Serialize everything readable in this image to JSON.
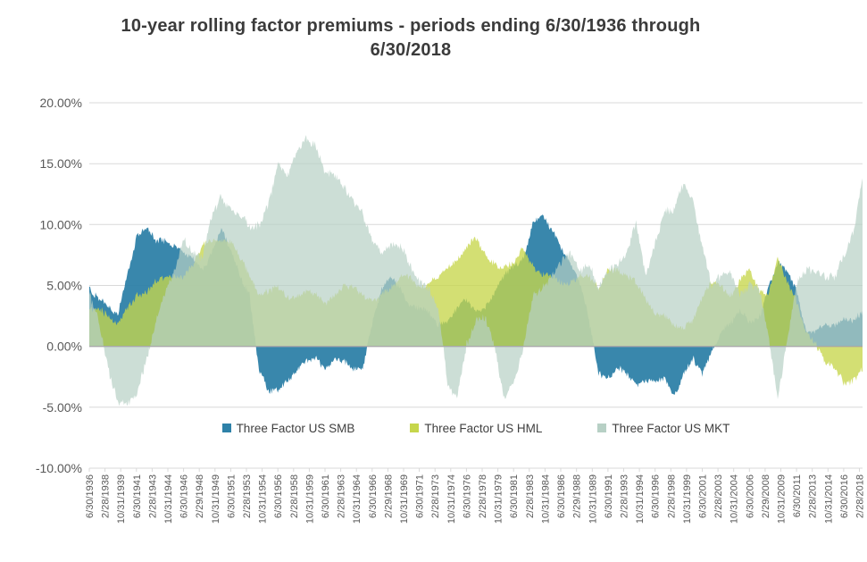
{
  "page": {
    "background": "#FFFFFF"
  },
  "colors": {
    "grid_line": "#D9D9D9",
    "zero_line": "#A8A8A8",
    "axis_text": "#595959",
    "title_text": "#3B3B3B",
    "legend_text": "#404040"
  },
  "chart_data": {
    "type": "area",
    "title": "10-year rolling factor premiums - periods ending 6/30/1936 through 6/30/2018",
    "grid": true,
    "legend_position": "bottom-inside",
    "y_axis": {
      "min": -10,
      "max": 20,
      "step": 5,
      "unit": "percent",
      "tick_labels": [
        "20.00%",
        "15.00%",
        "10.00%",
        "5.00%",
        "0.00%",
        "-5.00%",
        "-10.00%"
      ]
    },
    "x_axis": {
      "start_label": "6/30/1936",
      "end_label": "6/30/2018",
      "tick_interval_months": 20,
      "total_months": 984,
      "tick_labels": [
        "6/30/1936",
        "2/28/1938",
        "10/31/1939",
        "6/30/1941",
        "2/28/1943",
        "10/31/1944",
        "6/30/1946",
        "2/29/1948",
        "10/31/1949",
        "6/30/1951",
        "2/28/1953",
        "10/31/1954",
        "6/30/1956",
        "2/28/1958",
        "10/31/1959",
        "6/30/1961",
        "2/28/1963",
        "10/31/1964",
        "6/30/1966",
        "2/29/1968",
        "10/31/1969",
        "6/30/1971",
        "2/28/1973",
        "10/31/1974",
        "6/30/1976",
        "2/28/1978",
        "10/31/1979",
        "6/30/1981",
        "2/28/1983",
        "10/31/1984",
        "6/30/1986",
        "2/29/1988",
        "10/31/1989",
        "6/30/1991",
        "2/28/1993",
        "10/31/1994",
        "6/30/1996",
        "2/28/1998",
        "10/31/1999",
        "6/30/2001",
        "2/28/2003",
        "10/31/2004",
        "6/30/2006",
        "2/29/2008",
        "10/31/2009",
        "6/30/2011",
        "2/28/2013",
        "10/31/2014",
        "6/30/2016",
        "2/28/2018"
      ]
    },
    "anchor_years": [
      1936,
      1937,
      1938,
      1939,
      1940,
      1941,
      1942,
      1943,
      1944,
      1945,
      1946,
      1947,
      1948,
      1949,
      1950,
      1951,
      1952,
      1953,
      1954,
      1955,
      1956,
      1957,
      1958,
      1959,
      1960,
      1961,
      1962,
      1963,
      1964,
      1965,
      1966,
      1967,
      1968,
      1969,
      1970,
      1971,
      1972,
      1973,
      1974,
      1975,
      1976,
      1977,
      1978,
      1979,
      1980,
      1981,
      1982,
      1983,
      1984,
      1985,
      1986,
      1987,
      1988,
      1989,
      1990,
      1991,
      1992,
      1993,
      1994,
      1995,
      1996,
      1997,
      1998,
      1999,
      2000,
      2001,
      2002,
      2003,
      2004,
      2005,
      2006,
      2007,
      2008,
      2009,
      2010,
      2011,
      2012,
      2013,
      2014,
      2015,
      2016,
      2017,
      2018
    ],
    "series": [
      {
        "name": "Three Factor US SMB",
        "color": "#2E81A8",
        "values": [
          5.0,
          4.0,
          3.0,
          2.5,
          6.0,
          9.0,
          9.5,
          8.5,
          9.0,
          8.5,
          7.5,
          7.0,
          6.5,
          8.0,
          9.5,
          7.5,
          6.0,
          4.5,
          -2.0,
          -4.0,
          -3.5,
          -2.5,
          -2.0,
          -1.5,
          -1.0,
          -1.5,
          -1.0,
          -1.5,
          -2.0,
          -1.5,
          2.0,
          4.5,
          5.5,
          5.0,
          3.5,
          3.0,
          2.5,
          2.0,
          2.5,
          3.0,
          3.5,
          3.0,
          3.5,
          4.5,
          5.5,
          6.5,
          7.5,
          10.0,
          10.5,
          9.5,
          8.5,
          7.0,
          5.0,
          2.0,
          -2.0,
          -2.5,
          -2.0,
          -2.5,
          -3.0,
          -2.5,
          -3.0,
          -3.0,
          -4.0,
          -2.0,
          -1.0,
          -2.5,
          -0.5,
          1.5,
          2.0,
          2.5,
          2.0,
          2.5,
          5.0,
          6.5,
          6.0,
          5.0,
          1.5,
          1.0,
          1.5,
          2.0,
          2.5,
          2.0,
          2.5
        ]
      },
      {
        "name": "Three Factor US HML",
        "color": "#C6D64B",
        "values": [
          3.0,
          3.5,
          2.5,
          1.5,
          3.0,
          4.5,
          4.5,
          5.0,
          5.5,
          6.0,
          6.0,
          6.5,
          8.0,
          9.0,
          9.0,
          8.5,
          7.0,
          6.0,
          4.5,
          4.5,
          4.5,
          4.0,
          4.5,
          4.5,
          4.0,
          3.5,
          4.5,
          5.0,
          4.5,
          4.0,
          4.0,
          4.5,
          4.5,
          5.5,
          6.0,
          5.0,
          5.0,
          5.5,
          6.5,
          7.5,
          8.0,
          8.5,
          7.5,
          7.0,
          6.5,
          6.5,
          8.0,
          7.0,
          6.0,
          5.5,
          5.0,
          5.5,
          6.0,
          5.5,
          4.5,
          6.5,
          6.5,
          5.5,
          5.0,
          4.0,
          3.0,
          2.5,
          1.5,
          1.5,
          2.5,
          4.0,
          5.0,
          5.0,
          4.5,
          5.5,
          6.0,
          4.5,
          4.5,
          7.5,
          5.0,
          3.5,
          1.5,
          0.5,
          -1.5,
          -2.0,
          -2.8,
          -2.5,
          -2.0
        ]
      },
      {
        "name": "Three Factor US MKT",
        "color": "#B7D0C5",
        "values": [
          4.0,
          2.0,
          -1.5,
          -4.5,
          -5.0,
          -4.0,
          -1.0,
          2.0,
          4.0,
          6.0,
          9.0,
          8.0,
          7.0,
          10.5,
          12.5,
          11.5,
          10.5,
          9.5,
          10.0,
          12.0,
          15.0,
          13.5,
          16.0,
          17.5,
          16.5,
          14.0,
          14.0,
          13.5,
          12.0,
          10.5,
          8.5,
          8.0,
          8.5,
          8.0,
          6.5,
          5.5,
          5.0,
          3.0,
          -3.5,
          -4.0,
          0.5,
          2.0,
          2.0,
          0.0,
          -4.0,
          -3.0,
          -0.5,
          4.0,
          5.0,
          6.0,
          6.5,
          7.5,
          6.5,
          7.0,
          4.5,
          6.0,
          7.0,
          8.0,
          10.0,
          5.5,
          8.5,
          11.5,
          11.0,
          13.0,
          12.0,
          8.5,
          5.0,
          5.5,
          6.0,
          4.5,
          5.0,
          4.5,
          1.0,
          -4.0,
          0.5,
          5.0,
          6.0,
          6.5,
          6.0,
          5.5,
          7.0,
          9.5,
          14.0
        ]
      }
    ]
  }
}
